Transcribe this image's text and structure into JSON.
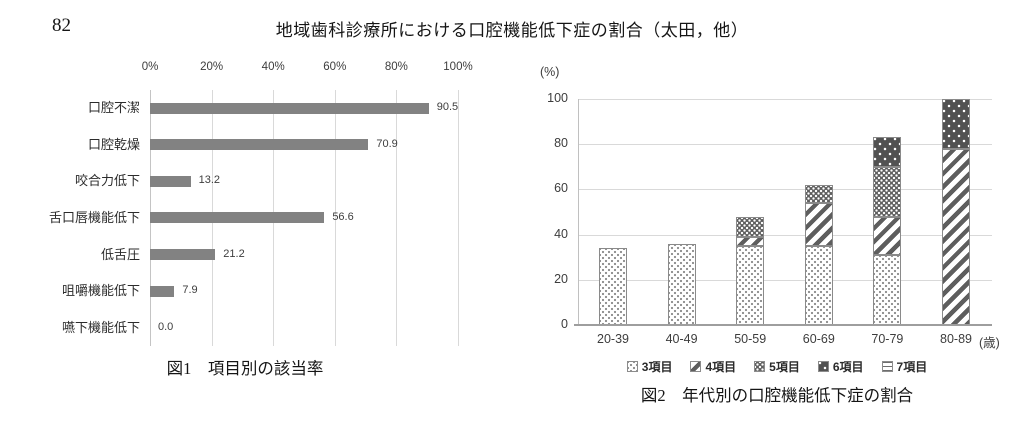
{
  "page": {
    "number": "82",
    "title": "地域歯科診療所における口腔機能低下症の割合（太田，他）"
  },
  "chart_data": [
    {
      "type": "bar",
      "orientation": "horizontal",
      "title": "図1　項目別の該当率",
      "categories": [
        "口腔不潔",
        "口腔乾燥",
        "咬合力低下",
        "舌口唇機能低下",
        "低舌圧",
        "咀嚼機能低下",
        "嚥下機能低下"
      ],
      "values": [
        90.5,
        70.9,
        13.2,
        56.6,
        21.2,
        7.9,
        0.0
      ],
      "data_labels": [
        "90.5",
        "70.9",
        "13.2",
        "56.6",
        "21.2",
        "7.9",
        "0.0"
      ],
      "x_tick_labels": [
        "0%",
        "20%",
        "40%",
        "60%",
        "80%",
        "100%"
      ],
      "xlim": [
        0,
        100
      ],
      "grid": true,
      "bar_color": "#828282",
      "gridline_color": "#d9d9d9"
    },
    {
      "type": "bar",
      "subtype": "stacked",
      "title": "図2　年代別の口腔機能低下症の割合",
      "categories": [
        "20-39",
        "40-49",
        "50-59",
        "60-69",
        "70-79",
        "80-89"
      ],
      "series": [
        {
          "name": "3項目",
          "values": [
            34,
            36,
            35,
            35,
            31,
            0
          ]
        },
        {
          "name": "4項目",
          "values": [
            0,
            0,
            4,
            19,
            17,
            78
          ]
        },
        {
          "name": "5項目",
          "values": [
            0,
            0,
            9,
            8,
            22,
            0
          ]
        },
        {
          "name": "6項目",
          "values": [
            0,
            0,
            0,
            0,
            13,
            22
          ]
        },
        {
          "name": "7項目",
          "values": [
            0,
            0,
            0,
            0,
            0,
            0
          ]
        }
      ],
      "y_ticks": [
        0,
        20,
        40,
        60,
        80,
        100
      ],
      "ylim": [
        0,
        100
      ],
      "ylabel": "(%)",
      "xlabel": "(歳)",
      "grid": true,
      "legend_position": "bottom",
      "pattern_ink_color": "#5e5e5e",
      "gridline_color": "#d9d9d9"
    }
  ]
}
